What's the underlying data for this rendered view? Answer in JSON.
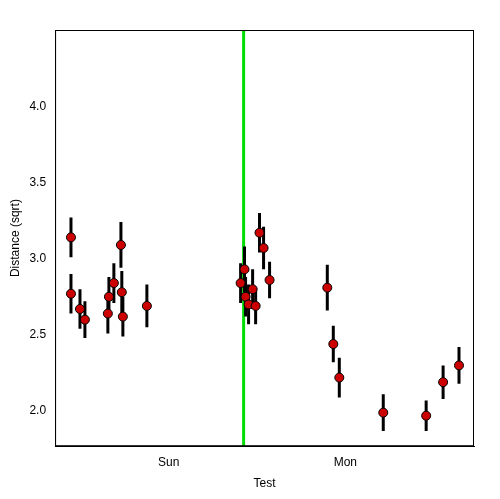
{
  "chart_data": {
    "type": "scatter",
    "x_label": "Test",
    "y_label": "Distance (sqrt)",
    "x": [
      -0.554,
      -0.554,
      -0.503,
      -0.475,
      -0.345,
      -0.339,
      -0.311,
      -0.271,
      -0.266,
      -0.26,
      -0.124,
      0.407,
      0.429,
      0.435,
      0.452,
      0.475,
      0.492,
      0.514,
      0.537,
      0.571,
      0.898,
      0.932,
      0.966,
      1.215,
      1.458,
      1.554,
      1.644
    ],
    "values": [
      3.14,
      2.77,
      2.67,
      2.6,
      2.64,
      2.75,
      2.84,
      3.09,
      2.78,
      2.62,
      2.69,
      2.84,
      2.93,
      2.75,
      2.7,
      2.8,
      2.69,
      3.17,
      3.07,
      2.86,
      2.81,
      2.44,
      2.22,
      1.99,
      1.97,
      2.19,
      2.3
    ],
    "errors": [
      0.13,
      0.13,
      0.13,
      0.12,
      0.13,
      0.13,
      0.13,
      0.15,
      0.14,
      0.13,
      0.14,
      0.13,
      0.15,
      0.13,
      0.13,
      0.13,
      0.12,
      0.13,
      0.14,
      0.12,
      0.15,
      0.12,
      0.13,
      0.12,
      0.1,
      0.11,
      0.12
    ],
    "color": "#cc0000",
    "marker": "circle",
    "reference_line_x": 0.424,
    "reference_line_color": "#00dd00",
    "xlim": [
      -0.644,
      1.729
    ],
    "xticks": [
      {
        "value": 0,
        "label": "Sun"
      },
      {
        "value": 1,
        "label": "Mon"
      }
    ],
    "ylim": [
      1.77,
      4.5
    ],
    "yticks": [
      {
        "value": 2,
        "label": "2.0"
      },
      2.5,
      {
        "value": 3,
        "label": "3.0"
      },
      3.5,
      {
        "value": 4,
        "label": "4.0"
      }
    ],
    "grid": false
  }
}
